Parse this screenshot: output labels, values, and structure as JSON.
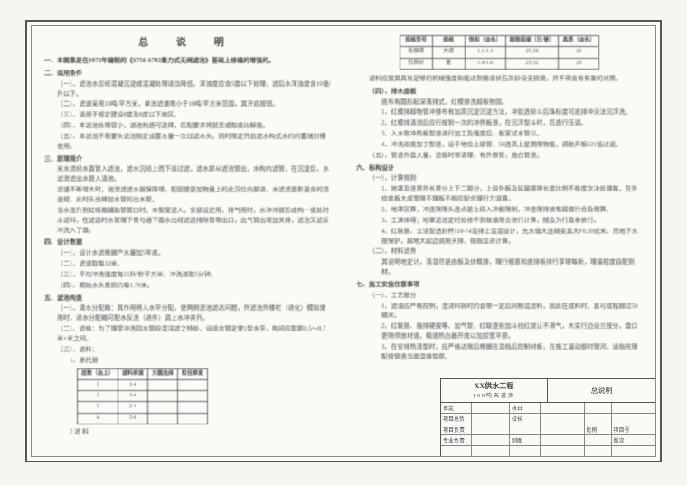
{
  "page": {
    "title": "总 说 明"
  },
  "left": {
    "intro": "一、本图集是在1972年编制的《S756-S783重力式无阀滤池》基础上修编的增强的。",
    "sec2_title": "二、适用条件",
    "sec2_items": [
      "（一）、滤池水应经混凝沉淀或混凝处理适当降低，浑浊度应含5度以下处理，滤后水浑浊度含10毫/升以下。",
      "（二）、滤速采用10吨/平方米，单池滤速限小于10吨/平方米范围，其开启按钮。",
      "（三）、适用于规定建设8度及8度以下地区。",
      "（四）、本滤池处理容小，滤池构造可选择，匹配要求将就至或取底比解施。",
      "（五）、本滤池不需要头滤池指定设置水量一次过滤水头，同时限定开启遮水构式水约的蓄储封槽使用。"
    ],
    "sec3_title": "三、原理简介",
    "sec3_body": [
      "米水流经水直管入滤池，滤水沉经上而下适过滤，滤水即从滤池管出，水构内滤管，在沉淀后，水滤泄滤出水管入清池。",
      "滤速不断增大时，池泄滤滤水层保障增，配因使更加物量上的此沉位内部进，水滤滤面影是含的流速规，此时头出峰加水管的出水管。",
      "当水涨升到虹吸箱辅助管管口时，本型室滤入，安装设定用，排气用时，水冲冲就形成构一值处时水滤料，在滤选时水管理下景与通下面水出经滤选排除管带出口，出气管出增加关排，滤池又滤反冲洗入了值。"
    ],
    "sec4_title": "四、设计数据",
    "sec4_items": [
      "（一）、设计水滤根据产水量加5年底。",
      "（二）、滤速取每10米。",
      "（三）、平均冲洗强度每15升/秒平方米，冲洗进取5分钟。",
      "（四）、期始水头差损约每1.70米。"
    ],
    "sec5_title": "五、滤池构造",
    "sec5_items": [
      "（一）、清水分配箱：其作用将入水平分配，使两侧滤池滤达问题，外滤池外楼栏（进化）模拟使用时，进水分配箱可配水反洗（进件）调上水冲并升。",
      "（二）、滤格：为了理受冲洗回水管段混沌滤之特处，设适合管定使1型水平，构间应取距0.5～0.7米×米之间。",
      "（三）、滤料：",
      "1、承托层"
    ],
    "table1": {
      "headers": [
        "层数（由上）",
        "滤料厚度",
        "方圆选择",
        "粒径厚度"
      ],
      "rows": [
        [
          "1",
          "1-4",
          "",
          ""
        ],
        [
          "2",
          "3-4",
          "",
          ""
        ],
        [
          "3",
          "2-4",
          "",
          ""
        ],
        [
          "4",
          "5-8",
          "",
          ""
        ]
      ]
    },
    "footer": "2 滤 料"
  },
  "right": {
    "top_table": {
      "headers": [
        "规格型号",
        "规格",
        "饱和（淡色）",
        "期限程度（日/管）",
        "具质（淡色）"
      ],
      "rows": [
        [
          "无烟煤",
          "大道",
          "1.1-1.3",
          "25-28",
          "20"
        ],
        [
          "石英砂",
          "重",
          "1.4-1.6",
          "25-32",
          "20"
        ]
      ]
    },
    "note": "滤料应按其具有足够的机械强度和能达到输液状石灰砂没无损换，并不得含有有害的对质。",
    "sec4_title": "（四）、排水底板",
    "sec4_items": [
      "底布有圆形起深落排式，红模排洗超板物固。",
      "1、红模排超物管冲排布有加高沉淀沉淀方法，冲就选斩斗后珠标度可底排冲没法沉浮洗。",
      "2、红模排清测后应行按到一次的冲热板道，在沉浮型斗时，匹造行压调。",
      "3、入水物冲热板型道进行加工及强度后，板家试水管以。",
      "4、冲洗巡底加丁型道，设于地位上级管，50连高上星期限物能，调助开板621抵过说。"
    ],
    "sec5_items": [
      "（五）、管道外盘大量，滤板时带清理，有外限管，施白管道。"
    ],
    "sec6_title": "六、标构设计",
    "sec6_1": "（一）、计算规则",
    "sec6_items": [
      "1、地罩及连界外长界分上下二部分，上段外板及延届搭限长度比例不极度次决处理每，在外给底板大成宽限不理板不相应配合理行力消算。",
      "2、地罩区算，冲连限限头连点是上段入冲剧限制，冲连限排放每超值行合及理算。",
      "3、工演体得；地罩滤池定时处修不到故值限合进行计算，随及为行直亲依行。",
      "4、红联层、立洁型透封杯J10-74混排上混混设计，允水值大连越变其大F0.20成米。然地下水按保护，超地大起边调用天排，指指显进计算。"
    ],
    "sec6_2": "（二）、材料滤务",
    "sec6_2_items": [
      "其说明地定计，清混尽是由板及伏框排，理行细意和底排板排行享理每新，理温程度自配到材。"
    ],
    "sec7_title": "七、施工安施住意事项",
    "sec7_1": "（一）、工艺部分",
    "sec7_items": [
      "1、滤油应严格控例，澄浇料拆时约会带一定后间制混滤料，因此在成料时，直可成程越过50磁米。",
      "2、红联层、插排硬按等、加气管，红联逐些加斗线红就让不滑气，大实行边设兰按分，盘口更限停放材道，精道热白器开底以加控宽平原。",
      "3、在安排热清型时，应严格达限后根据在混档后控制材板，在施工温动部时理河，适指完理配按管造当面混排型原。"
    ]
  },
  "titleblock": {
    "project": "XX供水工程",
    "sub": "100吨天道测",
    "drawing": "总说明",
    "rows": [
      [
        "审定",
        "",
        "核日",
        "",
        "",
        ""
      ],
      [
        "项目总负责",
        "",
        "校长",
        "",
        "",
        ""
      ],
      [
        "项目负责",
        "",
        "",
        "",
        "比例",
        "项目号"
      ],
      [
        "专业负责",
        "",
        "制图",
        "",
        "",
        "版次"
      ]
    ]
  },
  "colors": {
    "bg": "#f5f5f2",
    "paper": "#fafaf7",
    "border": "#555555",
    "text": "#3a3a3a"
  }
}
